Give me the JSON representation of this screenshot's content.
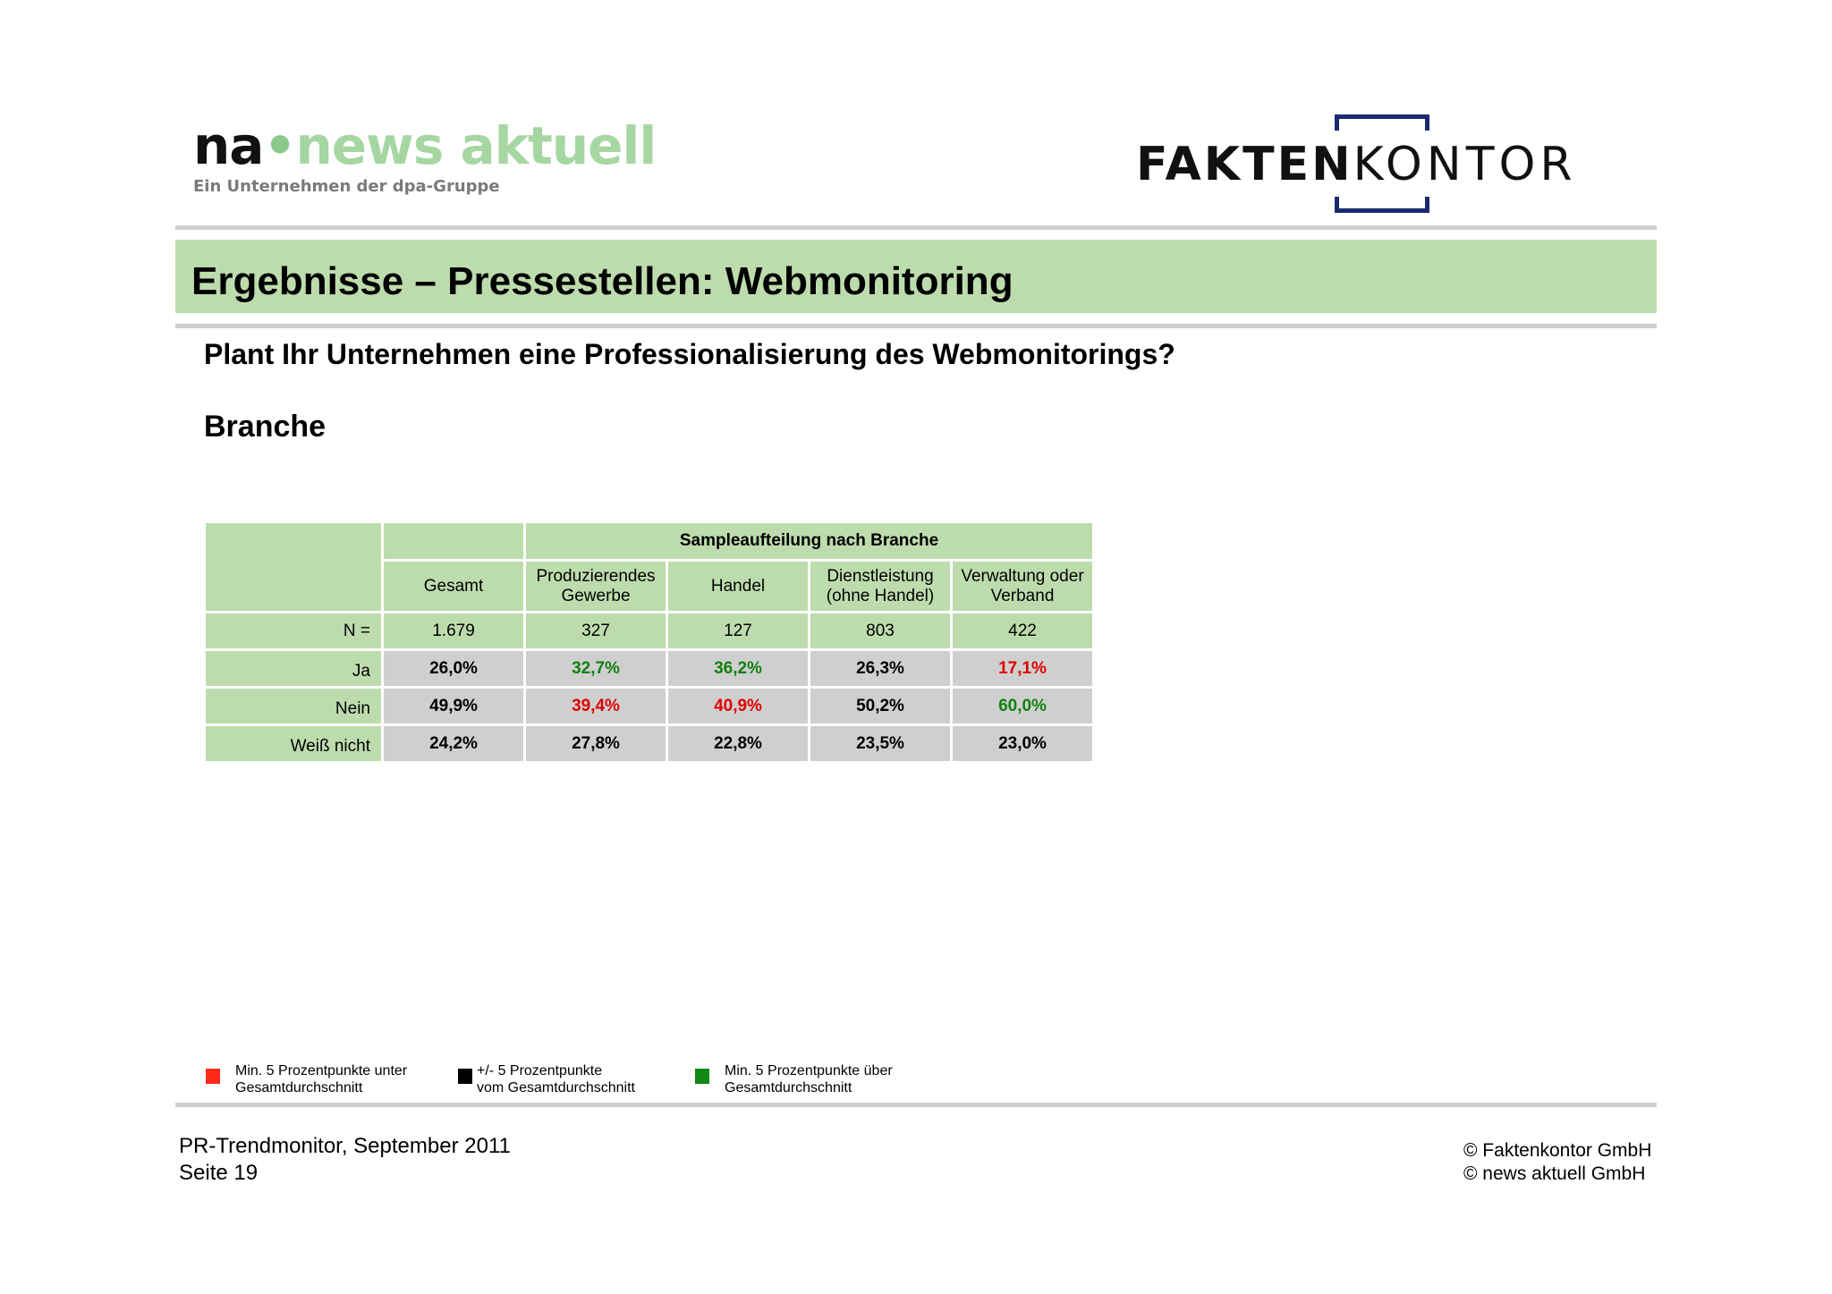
{
  "logos": {
    "news_aktuell": {
      "abbr": "na",
      "dot": "•",
      "name": "news aktuell",
      "tagline": "Ein Unternehmen der dpa-Gruppe"
    },
    "faktenkontor": {
      "bold": "FAKTEN",
      "light": "KONTOR"
    }
  },
  "title": "Ergebnisse – Pressestellen: Webmonitoring",
  "question": "Plant Ihr Unternehmen eine Professionalisierung des Webmonitorings?",
  "subtitle": "Branche",
  "table": {
    "group_header": "Sampleaufteilung nach Branche",
    "columns": [
      "Gesamt",
      "Produzierendes\nGewerbe",
      "Handel",
      "Dienstleistung\n(ohne Handel)",
      "Verwaltung oder\nVerband"
    ],
    "n_row": {
      "label": "N =",
      "values": [
        "1.679",
        "327",
        "127",
        "803",
        "422"
      ]
    },
    "rows": [
      {
        "label": "Ja",
        "values": [
          "26,0%",
          "32,7%",
          "36,2%",
          "26,3%",
          "17,1%"
        ],
        "status": [
          "black",
          "green",
          "green",
          "black",
          "red"
        ]
      },
      {
        "label": "Nein",
        "values": [
          "49,9%",
          "39,4%",
          "40,9%",
          "50,2%",
          "60,0%"
        ],
        "status": [
          "black",
          "red",
          "red",
          "black",
          "green"
        ]
      },
      {
        "label": "Weiß nicht",
        "values": [
          "24,2%",
          "27,8%",
          "22,8%",
          "23,5%",
          "23,0%"
        ],
        "status": [
          "black",
          "black",
          "black",
          "black",
          "black"
        ]
      }
    ]
  },
  "legend": [
    {
      "color": "#ff2a1a",
      "text": "Min. 5 Prozentpunkte unter\nGesamtdurchschnitt"
    },
    {
      "color": "#000000",
      "text": "+/- 5 Prozentpunkte\nvom Gesamtdurchschnitt"
    },
    {
      "color": "#108a10",
      "text": "Min. 5 Prozentpunkte über\nGesamtdurchschnitt"
    }
  ],
  "footer": {
    "left": "PR-Trendmonitor, September 2011\nSeite 19",
    "right": "© Faktenkontor GmbH\n© news aktuell GmbH"
  }
}
